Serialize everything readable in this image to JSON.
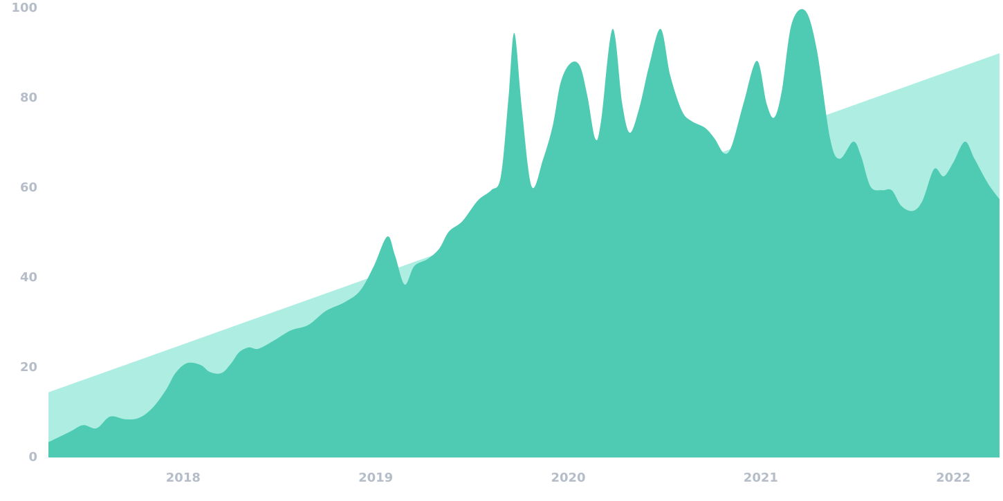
{
  "chart_data": {
    "type": "area",
    "xlim": [
      2017.3,
      2022.24
    ],
    "xticks": [
      2018,
      2019,
      2020,
      2021,
      2022
    ],
    "ylim": [
      0,
      100
    ],
    "yticks": [
      0,
      20,
      40,
      60,
      80,
      100
    ],
    "series": [
      {
        "color": "#aeeee2",
        "x": [
          2017.3,
          2022.24
        ],
        "values": [
          14.5,
          90
        ]
      },
      {
        "color": "#50cbb3",
        "x": [
          2017.3,
          2017.41,
          2017.48,
          2017.55,
          2017.62,
          2017.7,
          2017.77,
          2017.84,
          2017.91,
          2017.96,
          2018.02,
          2018.09,
          2018.14,
          2018.2,
          2018.25,
          2018.29,
          2018.34,
          2018.39,
          2018.47,
          2018.56,
          2018.65,
          2018.74,
          2018.84,
          2018.92,
          2018.99,
          2019.06,
          2019.1,
          2019.15,
          2019.2,
          2019.27,
          2019.33,
          2019.38,
          2019.45,
          2019.53,
          2019.6,
          2019.65,
          2019.69,
          2019.72,
          2019.76,
          2019.81,
          2019.87,
          2019.92,
          2019.96,
          2020.01,
          2020.06,
          2020.1,
          2020.14,
          2020.17,
          2020.23,
          2020.28,
          2020.32,
          2020.37,
          2020.42,
          2020.48,
          2020.53,
          2020.59,
          2020.64,
          2020.71,
          2020.76,
          2020.81,
          2020.85,
          2020.91,
          2020.98,
          2021.03,
          2021.07,
          2021.11,
          2021.16,
          2021.23,
          2021.29,
          2021.36,
          2021.41,
          2021.48,
          2021.52,
          2021.57,
          2021.63,
          2021.68,
          2021.73,
          2021.79,
          2021.84,
          2021.9,
          2021.95,
          2022.0,
          2022.06,
          2022.11,
          2022.18,
          2022.24
        ],
        "values": [
          3.4,
          5.7,
          7.2,
          6.5,
          9.1,
          8.5,
          8.8,
          11,
          15,
          18.8,
          21,
          20.6,
          19,
          18.8,
          21,
          23.4,
          24.5,
          24.2,
          26,
          28.3,
          29.5,
          32.6,
          34.6,
          37.2,
          42.6,
          49.2,
          45,
          38.5,
          42.6,
          44.2,
          46.5,
          50.3,
          52.6,
          57.2,
          59.5,
          62.6,
          80.3,
          94.5,
          77.2,
          60.3,
          66.5,
          74,
          83.4,
          87.7,
          87.2,
          80.3,
          71,
          74.8,
          95.4,
          78.8,
          72.3,
          78,
          87.2,
          95.4,
          85,
          77.2,
          74.9,
          73.4,
          71,
          67.7,
          69.5,
          78.8,
          88.3,
          78.8,
          75.7,
          81.8,
          96.5,
          99.5,
          91,
          71,
          66.5,
          70.3,
          67.2,
          60.3,
          59.5,
          59.5,
          56,
          54.9,
          57.2,
          64.2,
          62.6,
          65.7,
          70.3,
          66.5,
          61,
          57.5
        ]
      }
    ]
  }
}
